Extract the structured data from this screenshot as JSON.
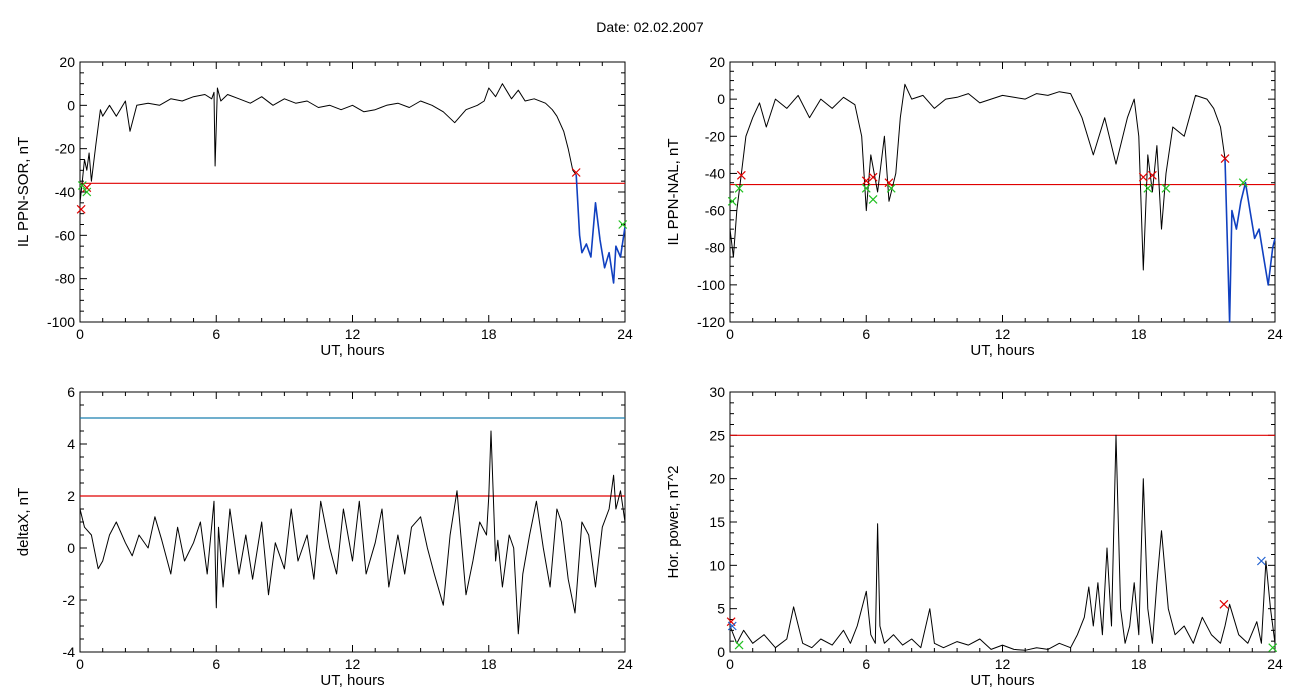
{
  "header": {
    "title": "Date:  02.02.2007"
  },
  "colors": {
    "threshold_red": "#e00000",
    "threshold_blue": "#1a7faf",
    "trace": "#000000",
    "highlight": "#1040c0",
    "marker_red": "#e00000",
    "marker_green": "#20c020",
    "marker_blue": "#2060d0"
  },
  "chart_data": [
    {
      "id": "sor",
      "type": "line",
      "xlabel": "UT, hours",
      "ylabel": "IL PPN-SOR, nT",
      "xlim": [
        0,
        24
      ],
      "ylim": [
        -100,
        20
      ],
      "xticks": [
        0,
        6,
        12,
        18,
        24
      ],
      "yticks": [
        -100,
        -80,
        -60,
        -40,
        -20,
        0,
        20
      ],
      "thresholds": [
        {
          "value": -36,
          "color": "#e00000"
        }
      ],
      "series": [
        {
          "role": "trace",
          "x": [
            0,
            0.1,
            0.2,
            0.3,
            0.4,
            0.5,
            0.7,
            0.9,
            1.0,
            1.3,
            1.6,
            2.0,
            2.2,
            2.5,
            3.0,
            3.5,
            4.0,
            4.5,
            5.0,
            5.5,
            5.8,
            5.9,
            5.95,
            6.05,
            6.2,
            6.5,
            7.0,
            7.5,
            8.0,
            8.5,
            9.0,
            9.5,
            10.0,
            10.5,
            11.0,
            11.5,
            12.0,
            12.5,
            13.0,
            13.5,
            14.0,
            14.5,
            15.0,
            15.5,
            16.0,
            16.5,
            17.0,
            17.5,
            17.8,
            18.0,
            18.3,
            18.6,
            19.0,
            19.3,
            19.6,
            20.0,
            20.5,
            20.8,
            21.0,
            21.3,
            21.5,
            21.7,
            21.85
          ],
          "y": [
            -45,
            -35,
            -25,
            -30,
            -22,
            -35,
            -18,
            -2,
            -5,
            0,
            -5,
            2,
            -12,
            0,
            1,
            0,
            3,
            2,
            4,
            5,
            3,
            6,
            -28,
            8,
            2,
            5,
            3,
            1,
            4,
            0,
            3,
            1,
            2,
            -1,
            0,
            -2,
            0,
            -3,
            -2,
            0,
            1,
            -1,
            2,
            0,
            -3,
            -8,
            -2,
            0,
            2,
            8,
            4,
            10,
            3,
            7,
            2,
            3,
            1,
            -2,
            -5,
            -12,
            -20,
            -30,
            -32
          ]
        },
        {
          "role": "event",
          "x": [
            21.85,
            22.0,
            22.1,
            22.3,
            22.5,
            22.7,
            22.9,
            23.1,
            23.3,
            23.5,
            23.6,
            23.8,
            24.0
          ],
          "y": [
            -32,
            -60,
            -68,
            -64,
            -70,
            -45,
            -62,
            -75,
            -68,
            -82,
            -65,
            -70,
            -56
          ]
        }
      ],
      "markers_red": [
        {
          "x": 0.05,
          "y": -48
        },
        {
          "x": 0.3,
          "y": -38
        },
        {
          "x": 21.85,
          "y": -31
        }
      ],
      "markers_green": [
        {
          "x": 0.1,
          "y": -37
        },
        {
          "x": 0.3,
          "y": -40
        },
        {
          "x": 23.9,
          "y": -55
        }
      ]
    },
    {
      "id": "nal",
      "type": "line",
      "xlabel": "UT, hours",
      "ylabel": "IL PPN-NAL, nT",
      "xlim": [
        0,
        24
      ],
      "ylim": [
        -120,
        20
      ],
      "xticks": [
        0,
        6,
        12,
        18,
        24
      ],
      "yticks": [
        -120,
        -100,
        -80,
        -60,
        -40,
        -20,
        0,
        20
      ],
      "thresholds": [
        {
          "value": -46,
          "color": "#e00000"
        }
      ],
      "series": [
        {
          "role": "trace",
          "x": [
            0,
            0.15,
            0.3,
            0.5,
            0.7,
            1.0,
            1.3,
            1.6,
            2.0,
            2.5,
            3.0,
            3.5,
            4.0,
            4.5,
            5.0,
            5.5,
            5.8,
            6.0,
            6.2,
            6.5,
            6.8,
            7.0,
            7.3,
            7.5,
            7.7,
            8.0,
            8.5,
            9.0,
            9.5,
            10.0,
            10.5,
            11.0,
            11.5,
            12.0,
            12.5,
            13.0,
            13.5,
            14.0,
            14.5,
            15.0,
            15.5,
            16.0,
            16.5,
            17.0,
            17.5,
            17.8,
            18.0,
            18.2,
            18.4,
            18.6,
            18.8,
            19.0,
            19.2,
            19.5,
            20.0,
            20.5,
            21.0,
            21.3,
            21.6,
            21.8
          ],
          "y": [
            -70,
            -85,
            -60,
            -40,
            -20,
            -10,
            -2,
            -15,
            0,
            -5,
            2,
            -10,
            0,
            -5,
            1,
            -3,
            -20,
            -60,
            -30,
            -50,
            -20,
            -55,
            -40,
            -10,
            8,
            0,
            2,
            -5,
            0,
            1,
            3,
            -2,
            0,
            2,
            1,
            0,
            3,
            2,
            4,
            3,
            -10,
            -30,
            -10,
            -35,
            -10,
            0,
            -20,
            -92,
            -30,
            -50,
            -25,
            -70,
            -40,
            -15,
            -20,
            2,
            0,
            -5,
            -15,
            -32
          ]
        },
        {
          "role": "event",
          "x": [
            21.8,
            22.0,
            22.1,
            22.3,
            22.5,
            22.7,
            22.9,
            23.1,
            23.3,
            23.5,
            23.7,
            23.9,
            24.0
          ],
          "y": [
            -32,
            -120,
            -60,
            -70,
            -55,
            -45,
            -60,
            -75,
            -70,
            -85,
            -100,
            -80,
            -75
          ]
        }
      ],
      "markers_red": [
        {
          "x": 0.5,
          "y": -41
        },
        {
          "x": 6.0,
          "y": -44
        },
        {
          "x": 6.3,
          "y": -42
        },
        {
          "x": 7.0,
          "y": -45
        },
        {
          "x": 18.2,
          "y": -42
        },
        {
          "x": 18.6,
          "y": -41
        },
        {
          "x": 21.8,
          "y": -32
        }
      ],
      "markers_green": [
        {
          "x": 0.1,
          "y": -55
        },
        {
          "x": 0.4,
          "y": -48
        },
        {
          "x": 6.0,
          "y": -48
        },
        {
          "x": 6.3,
          "y": -54
        },
        {
          "x": 7.1,
          "y": -48
        },
        {
          "x": 18.4,
          "y": -48
        },
        {
          "x": 19.2,
          "y": -48
        },
        {
          "x": 22.6,
          "y": -45
        }
      ]
    },
    {
      "id": "deltax",
      "type": "line",
      "xlabel": "UT, hours",
      "ylabel": "deltaX, nT",
      "xlim": [
        0,
        24
      ],
      "ylim": [
        -4,
        6
      ],
      "xticks": [
        0,
        6,
        12,
        18,
        24
      ],
      "yticks": [
        -4,
        -2,
        0,
        2,
        4,
        6
      ],
      "thresholds": [
        {
          "value": 5,
          "color": "#1a7faf"
        },
        {
          "value": 2,
          "color": "#e00000"
        }
      ],
      "series": [
        {
          "role": "trace",
          "x": [
            0,
            0.2,
            0.5,
            0.8,
            1.0,
            1.3,
            1.6,
            2.0,
            2.3,
            2.6,
            3.0,
            3.3,
            3.6,
            4.0,
            4.3,
            4.6,
            5.0,
            5.3,
            5.6,
            5.9,
            6.0,
            6.1,
            6.3,
            6.6,
            7.0,
            7.3,
            7.6,
            8.0,
            8.3,
            8.6,
            9.0,
            9.3,
            9.6,
            10.0,
            10.3,
            10.6,
            11.0,
            11.3,
            11.6,
            12.0,
            12.3,
            12.6,
            13.0,
            13.3,
            13.6,
            14.0,
            14.3,
            14.6,
            15.0,
            15.3,
            15.6,
            16.0,
            16.3,
            16.6,
            17.0,
            17.3,
            17.6,
            17.9,
            18.0,
            18.1,
            18.2,
            18.3,
            18.4,
            18.6,
            18.9,
            19.1,
            19.3,
            19.5,
            19.8,
            20.1,
            20.4,
            20.7,
            21.0,
            21.2,
            21.5,
            21.8,
            22.1,
            22.4,
            22.7,
            23.0,
            23.3,
            23.5,
            23.6,
            23.8,
            24.0
          ],
          "y": [
            1.5,
            0.8,
            0.5,
            -0.8,
            -0.5,
            0.5,
            1.0,
            0.2,
            -0.3,
            0.5,
            0.0,
            1.2,
            0.3,
            -1.0,
            0.8,
            -0.5,
            0.2,
            1.0,
            -1.0,
            1.8,
            -2.3,
            0.8,
            -1.5,
            1.5,
            -1.0,
            0.5,
            -1.2,
            1.0,
            -1.8,
            0.2,
            -0.8,
            1.5,
            -0.5,
            0.5,
            -1.2,
            1.8,
            0.0,
            -1.0,
            1.5,
            -0.5,
            1.8,
            -1.0,
            0.2,
            1.5,
            -1.5,
            0.5,
            -1.0,
            0.8,
            1.2,
            0.0,
            -1.0,
            -2.2,
            0.5,
            2.2,
            -1.8,
            -0.5,
            1.0,
            0.5,
            2.0,
            4.5,
            2.0,
            -0.5,
            0.3,
            -1.5,
            0.5,
            0.0,
            -3.3,
            -1.0,
            0.5,
            1.8,
            0.0,
            -1.5,
            1.5,
            1.0,
            -1.2,
            -2.5,
            1.0,
            0.5,
            -1.5,
            0.8,
            1.5,
            2.8,
            1.5,
            2.2,
            1.0
          ]
        }
      ],
      "markers_red": [],
      "markers_green": []
    },
    {
      "id": "power",
      "type": "line",
      "xlabel": "UT, hours",
      "ylabel": "Hor. power, nT^2",
      "xlim": [
        0,
        24
      ],
      "ylim": [
        0,
        30
      ],
      "xticks": [
        0,
        6,
        12,
        18,
        24
      ],
      "yticks": [
        0,
        5,
        10,
        15,
        20,
        25,
        30
      ],
      "thresholds": [
        {
          "value": 25,
          "color": "#e00000"
        }
      ],
      "series": [
        {
          "role": "trace",
          "x": [
            0,
            0.3,
            0.6,
            1.0,
            1.5,
            2.0,
            2.5,
            2.8,
            3.2,
            3.6,
            4.0,
            4.5,
            5.0,
            5.3,
            5.6,
            6.0,
            6.2,
            6.4,
            6.5,
            6.6,
            6.8,
            7.2,
            7.6,
            8.0,
            8.4,
            8.8,
            9.0,
            9.4,
            10.0,
            10.5,
            11.0,
            11.5,
            12.0,
            12.5,
            13.0,
            13.5,
            14.0,
            14.5,
            15.0,
            15.3,
            15.6,
            15.8,
            16.0,
            16.2,
            16.4,
            16.6,
            16.8,
            17.0,
            17.2,
            17.4,
            17.6,
            17.8,
            18.0,
            18.2,
            18.4,
            18.6,
            18.8,
            19.0,
            19.3,
            19.6,
            20.0,
            20.4,
            20.8,
            21.2,
            21.6,
            21.8,
            22.0,
            22.4,
            22.8,
            23.2,
            23.4,
            23.6,
            23.8,
            24.0
          ],
          "y": [
            3.0,
            1.0,
            2.5,
            1.0,
            2.0,
            0.5,
            1.5,
            5.2,
            1.0,
            0.5,
            1.5,
            0.8,
            2.5,
            1.0,
            3.0,
            7.0,
            2.0,
            1.0,
            14.8,
            3.0,
            1.0,
            2.0,
            0.8,
            1.5,
            0.5,
            5.0,
            1.0,
            0.5,
            1.2,
            0.8,
            1.5,
            0.3,
            0.8,
            0.3,
            0.2,
            0.5,
            0.3,
            1.0,
            0.5,
            2.0,
            4.0,
            7.5,
            3.0,
            8.0,
            2.0,
            12.0,
            3.0,
            25.0,
            5.0,
            1.0,
            3.0,
            8.0,
            2.0,
            20.0,
            5.0,
            1.0,
            8.0,
            14.0,
            5.0,
            2.0,
            3.0,
            1.0,
            4.0,
            2.0,
            1.0,
            3.0,
            5.5,
            2.0,
            1.0,
            3.5,
            1.0,
            10.5,
            5.0,
            1.0
          ]
        }
      ],
      "markers_red": [
        {
          "x": 0.05,
          "y": 3.5
        },
        {
          "x": 21.75,
          "y": 5.5
        }
      ],
      "markers_green": [
        {
          "x": 0.4,
          "y": 0.8
        },
        {
          "x": 23.9,
          "y": 0.5
        }
      ],
      "markers_blue": [
        {
          "x": 0.1,
          "y": 3.0
        },
        {
          "x": 23.4,
          "y": 10.5
        }
      ]
    }
  ]
}
